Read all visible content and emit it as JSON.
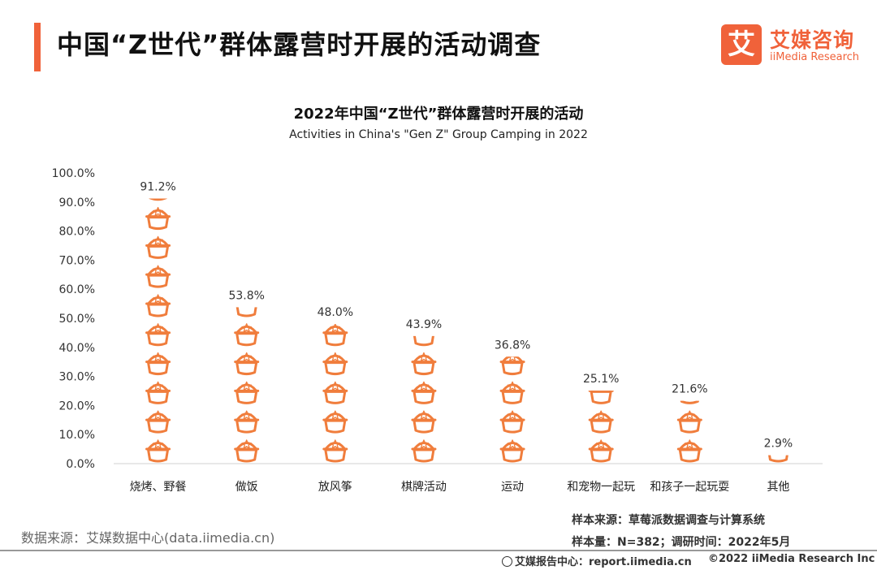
{
  "header": {
    "title": "中国“Z世代”群体露营时开展的活动调查",
    "logo_mark": "艾",
    "logo_cn": "艾媒咨询",
    "logo_en": "iiMedia Research"
  },
  "colors": {
    "accent": "#f0623a",
    "icon": "#f07d3c"
  },
  "icon_name": "camping-pot-icon",
  "chart_data": {
    "type": "bar",
    "title": "2022年中国“Z世代”群体露营时开展的活动",
    "subtitle": "Activities in China's \"Gen Z\" Group Camping in 2022",
    "categories": [
      "烧烤、野餐",
      "做饭",
      "放风筝",
      "棋牌活动",
      "运动",
      "和宠物一起玩",
      "和孩子一起玩耍",
      "其他"
    ],
    "values": [
      91.2,
      53.8,
      48.0,
      43.9,
      36.8,
      25.1,
      21.6,
      2.9
    ],
    "value_labels": [
      "91.2%",
      "53.8%",
      "48.0%",
      "43.9%",
      "36.8%",
      "25.1%",
      "21.6%",
      "2.9%"
    ],
    "ylim": [
      0,
      100
    ],
    "yticks": [
      "0.0%",
      "10.0%",
      "20.0%",
      "30.0%",
      "40.0%",
      "50.0%",
      "60.0%",
      "70.0%",
      "80.0%",
      "90.0%",
      "100.0%"
    ],
    "xlabel": "",
    "ylabel": "",
    "grid": false,
    "legend": "none"
  },
  "footer": {
    "source_left": "数据来源：艾媒数据中心(data.iimedia.cn)",
    "sample_source": "样本来源：草莓派数据调查与计算系统",
    "sample_size": "样本量：N=382；调研时间：2022年5月",
    "report": "艾媒报告中心：report.iimedia.cn",
    "copyright": "©2022  iiMedia Research  Inc"
  }
}
